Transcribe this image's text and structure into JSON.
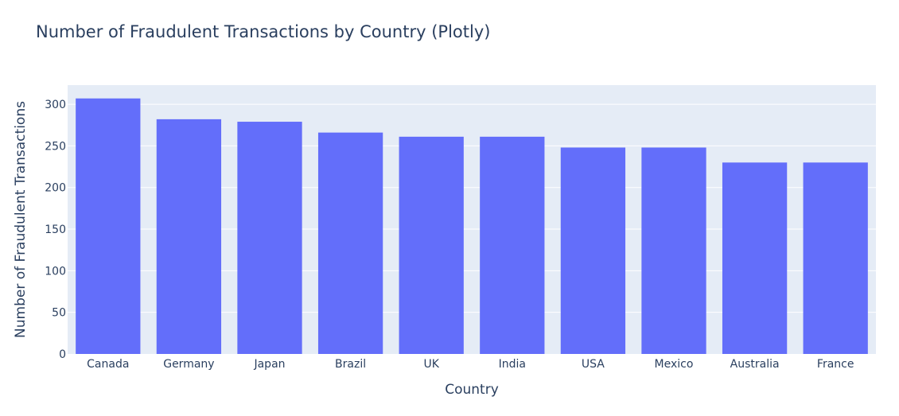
{
  "chart_data": {
    "type": "bar",
    "title": "Number of Fraudulent Transactions by Country (Plotly)",
    "xlabel": "Country",
    "ylabel": "Number of Fraudulent Transactions",
    "categories": [
      "Canada",
      "Germany",
      "Japan",
      "Brazil",
      "UK",
      "India",
      "USA",
      "Mexico",
      "Australia",
      "France"
    ],
    "values": [
      307,
      282,
      279,
      266,
      261,
      261,
      248,
      248,
      230,
      230
    ],
    "ylim": [
      0,
      323
    ],
    "yticks": [
      0,
      50,
      100,
      150,
      200,
      250,
      300
    ],
    "grid": true,
    "legend": "none",
    "colors": {
      "bar": "#636efa",
      "plot_background": "#e5ecf6",
      "gridline": "#ffffff",
      "text": "#2a3f5f"
    }
  }
}
